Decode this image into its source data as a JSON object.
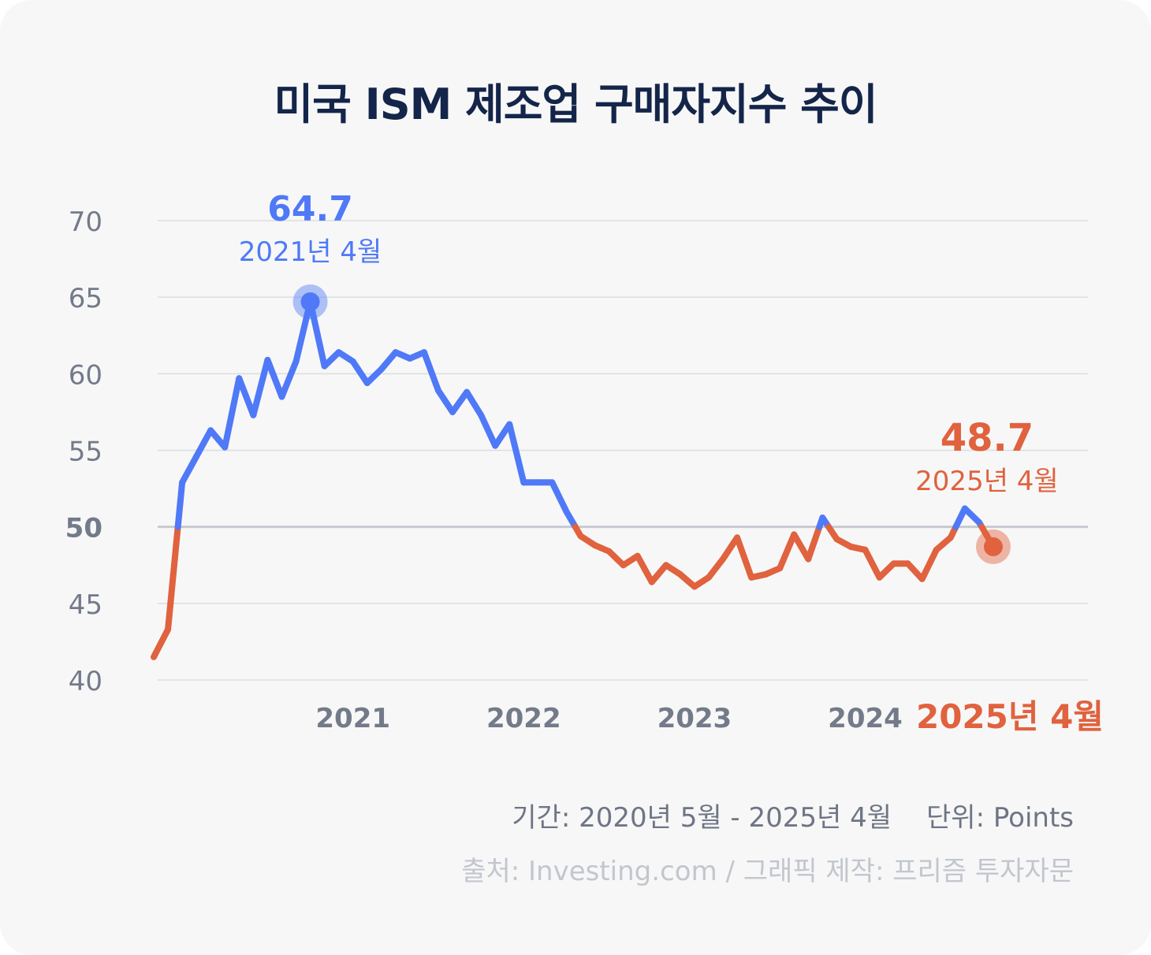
{
  "title": "미국 ISM 제조업 구매자지수 추이",
  "footer": {
    "period": "기간: 2020년 5월 - 2025년 4월",
    "unit": "단위: Points",
    "source": "출처: Investing.com / 그래픽 제작: 프리즘 투자자문"
  },
  "colors": {
    "above_50": "#4f79f7",
    "below_50": "#e0623e",
    "title": "#14254a",
    "axis_text": "#737a89",
    "grid": "#dcdde1",
    "background": "#f7f7f7"
  },
  "chart_data": {
    "type": "line",
    "title": "미국 ISM 제조업 구매자지수 추이",
    "x_start": "2020-05",
    "x_end": "2025-04",
    "ylim": [
      40,
      70
    ],
    "yticks": [
      40,
      45,
      50,
      55,
      60,
      65,
      70
    ],
    "reference_line": 50,
    "xtick_labels": [
      "2021",
      "2022",
      "2023",
      "2024"
    ],
    "end_label": "2025년 4월",
    "grid": true,
    "series": [
      {
        "months": [
          "2020-05",
          "2020-06",
          "2020-07",
          "2020-08",
          "2020-09",
          "2020-10",
          "2020-11",
          "2020-12",
          "2021-01",
          "2021-02",
          "2021-03",
          "2021-04",
          "2021-05",
          "2021-06",
          "2021-07",
          "2021-08",
          "2021-09",
          "2021-10",
          "2021-11",
          "2021-12",
          "2022-01",
          "2022-02",
          "2022-03",
          "2022-04",
          "2022-05",
          "2022-06",
          "2022-07",
          "2022-08",
          "2022-09",
          "2022-10",
          "2022-11",
          "2022-12",
          "2023-01",
          "2023-02",
          "2023-03",
          "2023-04",
          "2023-05",
          "2023-06",
          "2023-07",
          "2023-08",
          "2023-09",
          "2023-10",
          "2023-11",
          "2023-12",
          "2024-01",
          "2024-02",
          "2024-03",
          "2024-04",
          "2024-05",
          "2024-06",
          "2024-07",
          "2024-08",
          "2024-09",
          "2024-10",
          "2024-11",
          "2024-12",
          "2025-01",
          "2025-02",
          "2025-03",
          "2025-04"
        ],
        "values": [
          41.5,
          43.3,
          52.9,
          54.6,
          56.3,
          55.2,
          59.7,
          57.3,
          60.9,
          58.5,
          60.8,
          64.7,
          60.5,
          61.4,
          60.8,
          59.4,
          60.3,
          61.4,
          61.0,
          61.4,
          58.9,
          57.5,
          58.8,
          57.3,
          55.3,
          56.7,
          52.9,
          52.9,
          52.9,
          51.0,
          49.4,
          48.8,
          48.4,
          47.5,
          48.1,
          46.4,
          47.5,
          46.9,
          46.1,
          46.7,
          47.9,
          49.3,
          46.7,
          46.9,
          47.3,
          49.5,
          47.9,
          50.6,
          49.2,
          48.7,
          48.5,
          46.7,
          47.6,
          47.6,
          46.6,
          48.5,
          49.3,
          51.2,
          50.3,
          48.7
        ],
        "colored_above_below": 50
      }
    ],
    "annotations": [
      {
        "value_label": "64.7",
        "date_label": "2021년 4월",
        "month": "2021-04",
        "value": 64.7,
        "color": "#4f79f7"
      },
      {
        "value_label": "48.7",
        "date_label": "2025년 4월",
        "month": "2025-04",
        "value": 48.7,
        "color": "#e0623e"
      }
    ]
  }
}
